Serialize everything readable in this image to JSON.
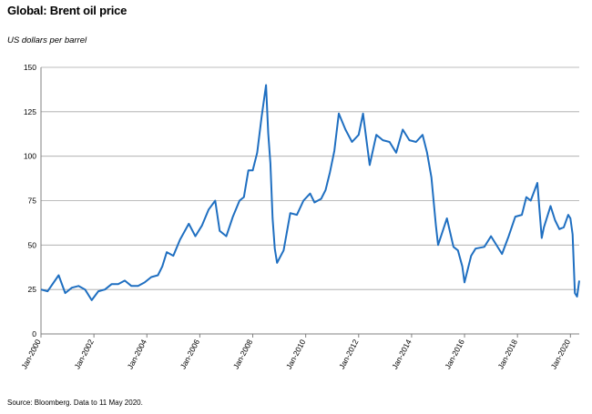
{
  "title": "Global: Brent oil price",
  "subtitle": "US dollars per barrel",
  "source": "Source: Bloomberg. Data to 11 May 2020.",
  "colors": {
    "series": "#1f6fc1",
    "grid": "#a6a6a6",
    "axis": "#808080"
  },
  "chart_data": {
    "type": "line",
    "title": "Global: Brent oil price",
    "ylabel": "US dollars per barrel",
    "xlabel": "",
    "ylim": [
      0,
      150
    ],
    "xlim": [
      "2000-01",
      "2020-05"
    ],
    "yticks": [
      0,
      25,
      50,
      75,
      100,
      125,
      150
    ],
    "xticks": [
      "Jan-2000",
      "Jan-2002",
      "Jan-2004",
      "Jan-2006",
      "Jan-2008",
      "Jan-2010",
      "Jan-2012",
      "Jan-2014",
      "Jan-2016",
      "Jan-2018",
      "Jan-2020"
    ],
    "grid": "horizontal",
    "series": [
      {
        "x": [
          "2000-01",
          "2000-04",
          "2000-09",
          "2000-12",
          "2001-03",
          "2001-06",
          "2001-09",
          "2001-12",
          "2002-03",
          "2002-06",
          "2002-09",
          "2002-12",
          "2003-03",
          "2003-06",
          "2003-09",
          "2003-12",
          "2004-03",
          "2004-06",
          "2004-08",
          "2004-10",
          "2005-01",
          "2005-04",
          "2005-08",
          "2005-11",
          "2006-02",
          "2006-05",
          "2006-08",
          "2006-10",
          "2007-01",
          "2007-04",
          "2007-07",
          "2007-09",
          "2007-11",
          "2008-01",
          "2008-03",
          "2008-05",
          "2008-07",
          "2008-08",
          "2008-09",
          "2008-10",
          "2008-11",
          "2008-12",
          "2009-03",
          "2009-06",
          "2009-09",
          "2009-12",
          "2010-03",
          "2010-05",
          "2010-08",
          "2010-10",
          "2010-12",
          "2011-02",
          "2011-04",
          "2011-07",
          "2011-10",
          "2012-01",
          "2012-03",
          "2012-06",
          "2012-09",
          "2012-12",
          "2013-03",
          "2013-06",
          "2013-09",
          "2013-12",
          "2014-03",
          "2014-06",
          "2014-08",
          "2014-10",
          "2014-12",
          "2015-01",
          "2015-05",
          "2015-08",
          "2015-10",
          "2015-12",
          "2016-01",
          "2016-04",
          "2016-06",
          "2016-10",
          "2017-01",
          "2017-06",
          "2017-09",
          "2017-12",
          "2018-03",
          "2018-05",
          "2018-07",
          "2018-10",
          "2018-12",
          "2019-01",
          "2019-04",
          "2019-06",
          "2019-08",
          "2019-10",
          "2019-12",
          "2020-01",
          "2020-02",
          "2020-03",
          "2020-04",
          "2020-05"
        ],
        "values": [
          25,
          24,
          33,
          23,
          26,
          27,
          25,
          19,
          24,
          25,
          28,
          28,
          30,
          27,
          27,
          29,
          32,
          33,
          38,
          46,
          44,
          53,
          62,
          55,
          61,
          70,
          75,
          58,
          55,
          66,
          75,
          77,
          92,
          92,
          102,
          122,
          140,
          113,
          96,
          65,
          48,
          40,
          47,
          68,
          67,
          75,
          79,
          74,
          76,
          81,
          91,
          103,
          124,
          115,
          108,
          112,
          124,
          95,
          112,
          109,
          108,
          102,
          115,
          109,
          108,
          112,
          102,
          88,
          61,
          50,
          65,
          49,
          47,
          38,
          29,
          44,
          48,
          49,
          55,
          45,
          55,
          66,
          67,
          77,
          75,
          85,
          54,
          60,
          72,
          64,
          59,
          60,
          67,
          65,
          56,
          23,
          21,
          30
        ]
      }
    ]
  }
}
